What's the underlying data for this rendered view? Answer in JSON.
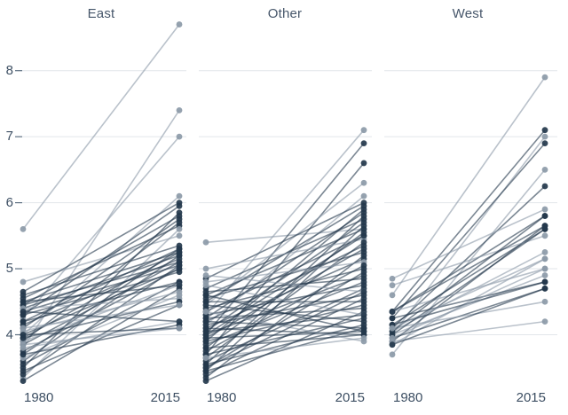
{
  "chart_data": {
    "type": "line",
    "subtype": "slopegraph",
    "title": "",
    "x_labels": [
      "1980",
      "2015"
    ],
    "x": [
      1980,
      2015
    ],
    "yticks": [
      4,
      5,
      6,
      7,
      8
    ],
    "ylim": [
      3.1,
      9.1
    ],
    "grid": true,
    "legend": "none",
    "colors": {
      "dark": "#24384c",
      "light": "#8c9aa8",
      "grid": "#e2e6ea",
      "tick": "#5f7183",
      "text": "#3d4f63",
      "title": "#46566a"
    },
    "panels": [
      {
        "title": "East",
        "lines": [
          [
            5.6,
            8.7,
            "l"
          ],
          [
            3.8,
            7.4,
            "l"
          ],
          [
            4.25,
            7.0,
            "l"
          ],
          [
            4.8,
            5.5,
            "l"
          ],
          [
            4.0,
            6.1,
            "l"
          ],
          [
            4.65,
            6.0,
            "d"
          ],
          [
            4.3,
            5.95,
            "d"
          ],
          [
            3.5,
            5.85,
            "d"
          ],
          [
            4.45,
            5.8,
            "d"
          ],
          [
            4.1,
            5.75,
            "d"
          ],
          [
            3.9,
            5.7,
            "d"
          ],
          [
            4.55,
            5.65,
            "d"
          ],
          [
            3.35,
            5.6,
            "l"
          ],
          [
            4.6,
            5.35,
            "d"
          ],
          [
            4.2,
            5.3,
            "d"
          ],
          [
            3.7,
            5.3,
            "d"
          ],
          [
            4.5,
            5.25,
            "d"
          ],
          [
            3.95,
            5.25,
            "d"
          ],
          [
            4.4,
            5.2,
            "d"
          ],
          [
            3.6,
            5.2,
            "d"
          ],
          [
            4.15,
            5.15,
            "d"
          ],
          [
            3.85,
            5.1,
            "d"
          ],
          [
            4.45,
            5.1,
            "d"
          ],
          [
            3.4,
            5.05,
            "d"
          ],
          [
            4.35,
            5.05,
            "d"
          ],
          [
            4.0,
            5.0,
            "d"
          ],
          [
            3.75,
            5.0,
            "d"
          ],
          [
            4.3,
            4.95,
            "d"
          ],
          [
            3.55,
            4.8,
            "d"
          ],
          [
            4.2,
            4.8,
            "d"
          ],
          [
            3.9,
            4.75,
            "l"
          ],
          [
            4.5,
            4.75,
            "d"
          ],
          [
            3.3,
            4.7,
            "d"
          ],
          [
            4.05,
            4.65,
            "l"
          ],
          [
            3.65,
            4.6,
            "l"
          ],
          [
            4.4,
            4.55,
            "l"
          ],
          [
            3.95,
            4.5,
            "d"
          ],
          [
            3.45,
            4.45,
            "d"
          ],
          [
            4.1,
            4.45,
            "l"
          ],
          [
            3.8,
            4.2,
            "l"
          ],
          [
            4.35,
            4.2,
            "d"
          ],
          [
            3.7,
            4.15,
            "d"
          ],
          [
            4.0,
            4.1,
            "d"
          ],
          [
            3.85,
            4.1,
            "l"
          ]
        ]
      },
      {
        "title": "Other",
        "lines": [
          [
            5.4,
            5.6,
            "l"
          ],
          [
            4.3,
            7.1,
            "l"
          ],
          [
            4.0,
            6.9,
            "d"
          ],
          [
            3.7,
            6.6,
            "d"
          ],
          [
            4.45,
            6.3,
            "l"
          ],
          [
            4.15,
            6.1,
            "l"
          ],
          [
            4.85,
            6.0,
            "d"
          ],
          [
            4.5,
            5.95,
            "d"
          ],
          [
            3.9,
            5.9,
            "d"
          ],
          [
            4.25,
            5.85,
            "d"
          ],
          [
            3.55,
            5.8,
            "d"
          ],
          [
            4.7,
            5.75,
            "d"
          ],
          [
            4.05,
            5.7,
            "d"
          ],
          [
            3.45,
            5.65,
            "d"
          ],
          [
            4.6,
            5.6,
            "d"
          ],
          [
            3.8,
            5.55,
            "d"
          ],
          [
            4.35,
            5.5,
            "d"
          ],
          [
            5.0,
            5.45,
            "l"
          ],
          [
            3.65,
            5.4,
            "d"
          ],
          [
            4.2,
            5.35,
            "d"
          ],
          [
            3.95,
            5.3,
            "d"
          ],
          [
            4.55,
            5.25,
            "d"
          ],
          [
            3.35,
            5.2,
            "d"
          ],
          [
            4.1,
            5.15,
            "d"
          ],
          [
            4.8,
            5.1,
            "l"
          ],
          [
            3.75,
            5.05,
            "d"
          ],
          [
            4.4,
            5.0,
            "d"
          ],
          [
            3.5,
            4.95,
            "d"
          ],
          [
            4.0,
            4.9,
            "d"
          ],
          [
            4.65,
            4.85,
            "d"
          ],
          [
            3.85,
            4.8,
            "d"
          ],
          [
            4.3,
            4.75,
            "d"
          ],
          [
            3.6,
            4.7,
            "d"
          ],
          [
            4.9,
            4.65,
            "l"
          ],
          [
            4.15,
            4.6,
            "d"
          ],
          [
            3.4,
            4.55,
            "d"
          ],
          [
            4.5,
            4.5,
            "d"
          ],
          [
            3.9,
            4.45,
            "d"
          ],
          [
            4.25,
            4.4,
            "d"
          ],
          [
            3.3,
            4.35,
            "d"
          ],
          [
            4.75,
            4.3,
            "l"
          ],
          [
            4.05,
            4.3,
            "d"
          ],
          [
            3.7,
            4.25,
            "d"
          ],
          [
            4.45,
            4.2,
            "d"
          ],
          [
            3.55,
            4.15,
            "d"
          ],
          [
            4.2,
            4.1,
            "d"
          ],
          [
            3.45,
            4.1,
            "d"
          ],
          [
            3.95,
            4.05,
            "d"
          ],
          [
            4.6,
            4.05,
            "d"
          ],
          [
            3.8,
            4.0,
            "d"
          ],
          [
            4.1,
            4.0,
            "d"
          ],
          [
            3.65,
            3.95,
            "l"
          ],
          [
            4.35,
            3.9,
            "l"
          ],
          [
            3.5,
            4.65,
            "d"
          ],
          [
            4.0,
            5.5,
            "d"
          ]
        ]
      },
      {
        "title": "West",
        "lines": [
          [
            4.6,
            7.9,
            "l"
          ],
          [
            4.35,
            7.1,
            "d"
          ],
          [
            4.0,
            7.0,
            "l"
          ],
          [
            4.25,
            6.9,
            "d"
          ],
          [
            3.7,
            6.5,
            "l"
          ],
          [
            4.1,
            6.25,
            "d"
          ],
          [
            4.85,
            5.9,
            "l"
          ],
          [
            4.35,
            5.8,
            "d"
          ],
          [
            3.9,
            5.65,
            "d"
          ],
          [
            4.15,
            5.6,
            "d"
          ],
          [
            4.75,
            5.5,
            "l"
          ],
          [
            4.05,
            5.25,
            "l"
          ],
          [
            3.85,
            5.15,
            "l"
          ],
          [
            4.35,
            5.0,
            "l"
          ],
          [
            4.0,
            4.9,
            "l"
          ],
          [
            4.25,
            4.8,
            "d"
          ],
          [
            3.95,
            4.7,
            "d"
          ],
          [
            4.1,
            4.5,
            "l"
          ],
          [
            3.9,
            4.2,
            "l"
          ],
          [
            4.35,
            5.65,
            "d"
          ],
          [
            4.0,
            5.6,
            "d"
          ],
          [
            4.15,
            4.8,
            "d"
          ],
          [
            3.85,
            4.7,
            "d"
          ],
          [
            4.05,
            5.8,
            "d"
          ],
          [
            3.95,
            5.0,
            "l"
          ],
          [
            4.1,
            5.15,
            "l"
          ]
        ]
      }
    ]
  }
}
